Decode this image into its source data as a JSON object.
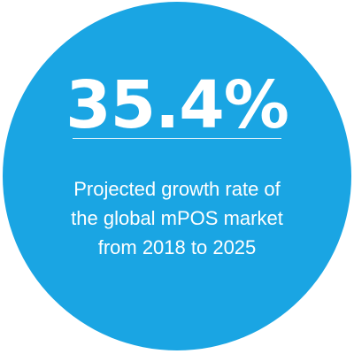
{
  "stat": {
    "value": "35.4%",
    "caption_lines": [
      "Projected growth rate of",
      "the global mPOS market",
      "from 2018 to 2025"
    ]
  },
  "colors": {
    "circle": "#1aa5e3",
    "text": "#ffffff"
  }
}
